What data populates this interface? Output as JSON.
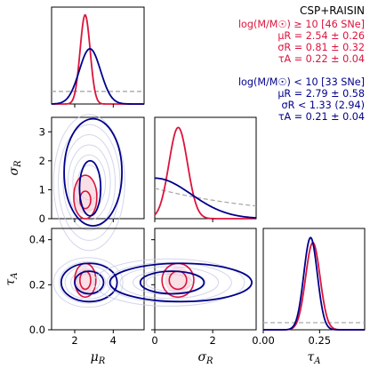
{
  "chart_data": {
    "type": "corner",
    "title": "CSP+RAISIN",
    "parameters": [
      "μR",
      "σR",
      "τA"
    ],
    "axes": {
      "mu_R": {
        "label": "μ",
        "sub": "R",
        "lim": [
          0.8,
          5.6
        ],
        "ticks": [
          "2",
          "4"
        ],
        "tick_values": [
          2,
          4
        ]
      },
      "sigma_R": {
        "label": "σ",
        "sub": "R",
        "lim": [
          0,
          3.5
        ],
        "ticks": [
          "0",
          "2"
        ],
        "tick_values": [
          0,
          2
        ]
      },
      "tau_A": {
        "label": "τ",
        "sub": "A",
        "lim": [
          0,
          0.45
        ],
        "ticks": [
          "0.00",
          "0.25"
        ],
        "tick_values": [
          0,
          0.25
        ]
      },
      "sigma_R_left": {
        "ticks": [
          "0",
          "1",
          "2",
          "3"
        ],
        "tick_values": [
          0,
          1,
          2,
          3
        ]
      },
      "tau_A_left": {
        "ticks": [
          "0.0",
          "0.2",
          "0.4"
        ],
        "tick_values": [
          0.0,
          0.2,
          0.4
        ]
      }
    },
    "series": [
      {
        "name": "log(M/M☉) ≥ 10 [46 SNe]",
        "color": "#dc143c",
        "lines": [
          "μR = 2.54 ± 0.26",
          "σR = 0.81 ± 0.32",
          "τA = 0.22 ± 0.04"
        ],
        "mu_R": 2.54,
        "mu_R_err": 0.26,
        "sigma_R": 0.81,
        "sigma_R_err": 0.32,
        "tau_A": 0.22,
        "tau_A_err": 0.04
      },
      {
        "name": "log(M/M☉) < 10 [33 SNe]",
        "color": "#00008b",
        "lines": [
          "μR = 2.79 ± 0.58",
          "σR < 1.33 (2.94)",
          "τA = 0.21 ± 0.04"
        ],
        "mu_R": 2.79,
        "mu_R_err": 0.58,
        "sigma_R_upper": 1.33,
        "sigma_R_upper2": 2.94,
        "tau_A": 0.21,
        "tau_A_err": 0.04
      }
    ],
    "prior": {
      "color": "#aaaaaa",
      "style": "dashed"
    }
  }
}
